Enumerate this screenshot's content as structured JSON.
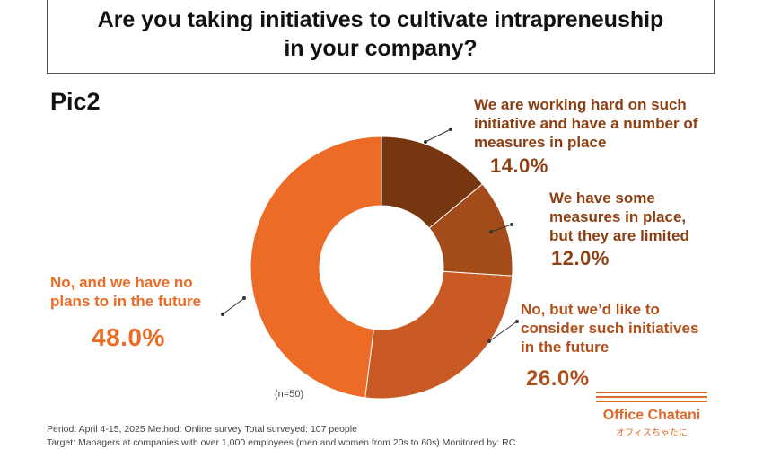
{
  "title": {
    "line1": "Are you taking initiatives to cultivate intrapreneuship",
    "line2": "in your company?"
  },
  "pic_label": "Pic2",
  "sample_note": "(n=50)",
  "footer": {
    "line1": "Period: April 4-15, 2025 Method: Online survey Total surveyed: 107 people",
    "line2": "Target: Managers at companies with over 1,000 employees (men and women from 20s to 60s) Monitored by: RC"
  },
  "logo": {
    "name": "Office Chatani",
    "sub": "オフィスちゃたに"
  },
  "chart_data": {
    "type": "pie",
    "donut": true,
    "categories": [
      "We are working hard on such initiative and have a number of measures in place",
      "We have some measures in place, but they are limited",
      "No, but we’d like to consider such initiatives in the future",
      "No, and we have no plans to in the future"
    ],
    "values": [
      14.0,
      12.0,
      26.0,
      48.0
    ],
    "value_labels": [
      "14.0%",
      "12.0%",
      "26.0%",
      "48.0%"
    ],
    "label_lines": [
      [
        "We are working hard on such",
        "initiative and have a number of",
        "measures in place"
      ],
      [
        "We have some",
        "measures in place,",
        "but they are limited"
      ],
      [
        "No, but we’d like to",
        "consider such initiatives",
        "in the future"
      ],
      [
        "No, and we have no",
        "plans to in the future"
      ]
    ],
    "colors": [
      "#76360f",
      "#a34c1a",
      "#c95a24",
      "#ec6b26"
    ],
    "label_colors": [
      "#8c3f12",
      "#8c3f12",
      "#b04f1c",
      "#ec6b26"
    ],
    "start_angle_deg": 0,
    "direction": "clockwise"
  }
}
